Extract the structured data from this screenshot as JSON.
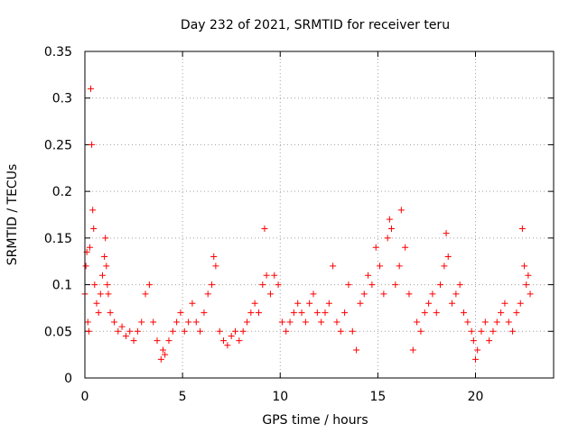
{
  "chart_data": {
    "type": "scatter",
    "title": "Day 232 of 2021, SRMTID for receiver teru",
    "xlabel": "GPS time / hours",
    "ylabel": "SRMTID / TECUs",
    "xlim": [
      0,
      24
    ],
    "ylim": [
      0,
      0.35
    ],
    "x_ticks": [
      0,
      5,
      10,
      15,
      20
    ],
    "x_tick_labels": [
      "0",
      "5",
      "10",
      "15",
      "20"
    ],
    "y_ticks": [
      0,
      0.05,
      0.1,
      0.15,
      0.2,
      0.25,
      0.3,
      0.35
    ],
    "y_tick_labels": [
      "0",
      "0.05",
      "0.1",
      "0.15",
      "0.2",
      "0.25",
      "0.3",
      "0.35"
    ],
    "grid": true,
    "marker": "plus",
    "color": "#ff0000",
    "series": [
      {
        "name": "SRMTID",
        "x": [
          0.0,
          0.05,
          0.1,
          0.15,
          0.2,
          0.25,
          0.3,
          0.35,
          0.4,
          0.45,
          0.5,
          0.6,
          0.7,
          0.8,
          0.9,
          1.0,
          1.05,
          1.1,
          1.15,
          1.2,
          1.3,
          1.5,
          1.7,
          1.9,
          2.1,
          2.3,
          2.5,
          2.7,
          2.9,
          3.1,
          3.3,
          3.5,
          3.7,
          3.9,
          4.0,
          4.1,
          4.3,
          4.5,
          4.7,
          4.9,
          5.1,
          5.3,
          5.5,
          5.7,
          5.9,
          6.1,
          6.3,
          6.5,
          6.6,
          6.7,
          6.9,
          7.1,
          7.3,
          7.5,
          7.7,
          7.9,
          8.1,
          8.3,
          8.5,
          8.7,
          8.9,
          9.1,
          9.2,
          9.3,
          9.5,
          9.7,
          9.9,
          10.1,
          10.3,
          10.5,
          10.7,
          10.9,
          11.1,
          11.3,
          11.5,
          11.7,
          11.9,
          12.1,
          12.3,
          12.5,
          12.7,
          12.9,
          13.1,
          13.3,
          13.5,
          13.7,
          13.9,
          14.1,
          14.3,
          14.5,
          14.7,
          14.9,
          15.1,
          15.3,
          15.5,
          15.6,
          15.7,
          15.9,
          16.1,
          16.2,
          16.4,
          16.6,
          16.8,
          17.0,
          17.2,
          17.4,
          17.6,
          17.8,
          18.0,
          18.2,
          18.4,
          18.5,
          18.6,
          18.8,
          19.0,
          19.2,
          19.4,
          19.6,
          19.8,
          19.9,
          20.0,
          20.1,
          20.3,
          20.5,
          20.7,
          20.9,
          21.1,
          21.3,
          21.5,
          21.7,
          21.9,
          22.1,
          22.3,
          22.4,
          22.5,
          22.6,
          22.7,
          22.8
        ],
        "y": [
          0.09,
          0.12,
          0.135,
          0.06,
          0.05,
          0.14,
          0.31,
          0.25,
          0.18,
          0.16,
          0.1,
          0.08,
          0.07,
          0.09,
          0.11,
          0.13,
          0.15,
          0.12,
          0.1,
          0.09,
          0.07,
          0.06,
          0.05,
          0.055,
          0.045,
          0.05,
          0.04,
          0.05,
          0.06,
          0.09,
          0.1,
          0.06,
          0.04,
          0.02,
          0.03,
          0.025,
          0.04,
          0.05,
          0.06,
          0.07,
          0.05,
          0.06,
          0.08,
          0.06,
          0.05,
          0.07,
          0.09,
          0.1,
          0.13,
          0.12,
          0.05,
          0.04,
          0.035,
          0.045,
          0.05,
          0.04,
          0.05,
          0.06,
          0.07,
          0.08,
          0.07,
          0.1,
          0.16,
          0.11,
          0.09,
          0.11,
          0.1,
          0.06,
          0.05,
          0.06,
          0.07,
          0.08,
          0.07,
          0.06,
          0.08,
          0.09,
          0.07,
          0.06,
          0.07,
          0.08,
          0.12,
          0.06,
          0.05,
          0.07,
          0.1,
          0.05,
          0.03,
          0.08,
          0.09,
          0.11,
          0.1,
          0.14,
          0.12,
          0.09,
          0.15,
          0.17,
          0.16,
          0.1,
          0.12,
          0.18,
          0.14,
          0.09,
          0.03,
          0.06,
          0.05,
          0.07,
          0.08,
          0.09,
          0.07,
          0.1,
          0.12,
          0.155,
          0.13,
          0.08,
          0.09,
          0.1,
          0.07,
          0.06,
          0.05,
          0.04,
          0.02,
          0.03,
          0.05,
          0.06,
          0.04,
          0.05,
          0.06,
          0.07,
          0.08,
          0.06,
          0.05,
          0.07,
          0.08,
          0.16,
          0.12,
          0.1,
          0.11,
          0.09
        ]
      }
    ]
  }
}
